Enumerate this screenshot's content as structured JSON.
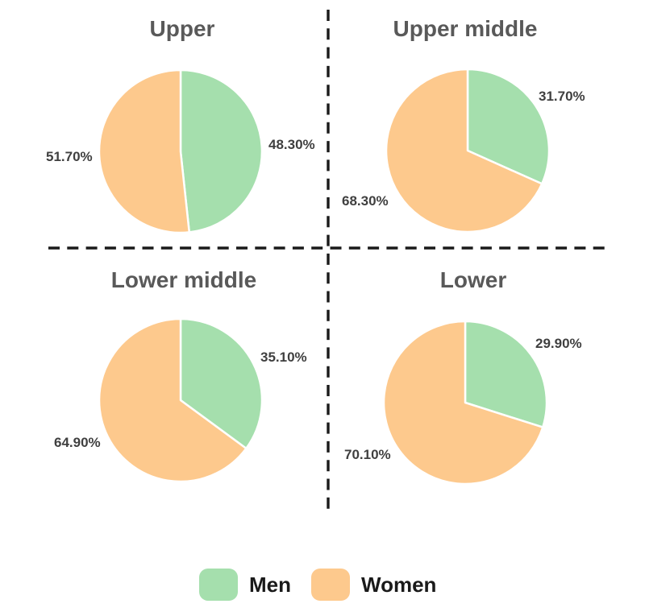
{
  "colors": {
    "men": "#a5dfad",
    "women": "#fdc98d",
    "title_text": "#595959",
    "label_text": "#3f3f3f",
    "legend_text": "#1a1a1a",
    "divider": "#1a1a1a",
    "background": "#ffffff"
  },
  "chart_data": [
    {
      "type": "pie",
      "title": "Upper",
      "categories": [
        "Men",
        "Women"
      ],
      "values": [
        48.3,
        51.7
      ],
      "labels": [
        "48.30%",
        "51.70%"
      ],
      "colors": [
        "#a5dfad",
        "#fdc98d"
      ],
      "start_angle": "12 o'clock, clockwise",
      "legend_position": "bottom"
    },
    {
      "type": "pie",
      "title": "Upper middle",
      "categories": [
        "Men",
        "Women"
      ],
      "values": [
        31.7,
        68.3
      ],
      "labels": [
        "31.70%",
        "68.30%"
      ],
      "colors": [
        "#a5dfad",
        "#fdc98d"
      ],
      "start_angle": "12 o'clock, clockwise",
      "legend_position": "bottom"
    },
    {
      "type": "pie",
      "title": "Lower middle",
      "categories": [
        "Men",
        "Women"
      ],
      "values": [
        35.1,
        64.9
      ],
      "labels": [
        "35.10%",
        "64.90%"
      ],
      "colors": [
        "#a5dfad",
        "#fdc98d"
      ],
      "start_angle": "12 o'clock, clockwise",
      "legend_position": "bottom"
    },
    {
      "type": "pie",
      "title": "Lower",
      "categories": [
        "Men",
        "Women"
      ],
      "values": [
        29.9,
        70.1
      ],
      "labels": [
        "29.90%",
        "70.10%"
      ],
      "colors": [
        "#a5dfad",
        "#fdc98d"
      ],
      "start_angle": "12 o'clock, clockwise",
      "legend_position": "bottom"
    }
  ],
  "legend": {
    "items": [
      {
        "label": "Men",
        "color": "#a5dfad"
      },
      {
        "label": "Women",
        "color": "#fdc98d"
      }
    ]
  }
}
